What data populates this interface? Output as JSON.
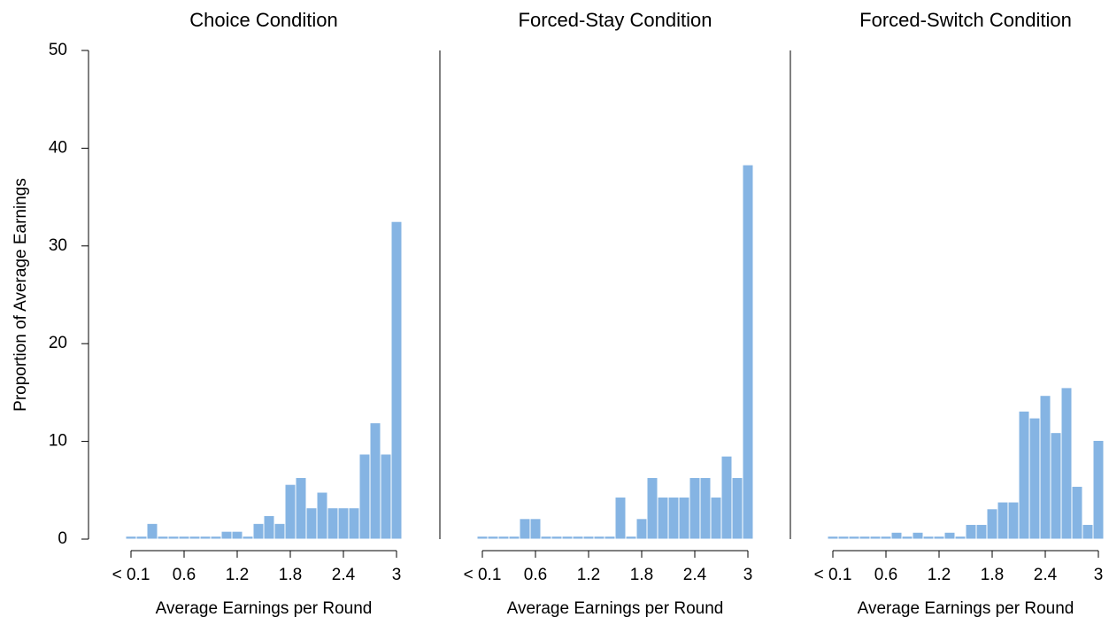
{
  "chart_data": [
    {
      "type": "histogram",
      "title": "Choice Condition",
      "xlabel": "Average Earnings per Round",
      "ylabel": "Proportion of Average Earnings",
      "bins": [
        -0.06,
        0.06,
        0.18,
        0.3,
        0.42,
        0.54,
        0.66,
        0.78,
        0.9,
        1.02,
        1.14,
        1.26,
        1.38,
        1.5,
        1.62,
        1.74,
        1.86,
        1.98,
        2.1,
        2.22,
        2.34,
        2.46,
        2.58,
        2.7,
        2.82,
        2.94,
        3.06
      ],
      "values": [
        0.3,
        0.3,
        1.6,
        0.3,
        0.3,
        0.3,
        0.3,
        0.3,
        0.3,
        0.8,
        0.8,
        0.3,
        1.6,
        2.4,
        1.6,
        5.6,
        6.3,
        3.2,
        4.8,
        3.2,
        3.2,
        3.2,
        8.7,
        11.9,
        8.7,
        32.5
      ],
      "color": "#85b4e3",
      "xlim": [
        -0.06,
        3.06
      ],
      "ylim": [
        0,
        50
      ],
      "xticks": [
        {
          "value": 0,
          "label": "< 0.1"
        },
        0.6,
        1.2,
        1.8,
        2.4,
        3
      ],
      "yticks": [
        0,
        10,
        20,
        30,
        40,
        50
      ]
    },
    {
      "type": "histogram",
      "title": "Forced-Stay Condition",
      "xlabel": "Average Earnings per Round",
      "bins": [
        -0.06,
        0.06,
        0.18,
        0.3,
        0.42,
        0.54,
        0.66,
        0.78,
        0.9,
        1.02,
        1.14,
        1.26,
        1.38,
        1.5,
        1.62,
        1.74,
        1.86,
        1.98,
        2.1,
        2.22,
        2.34,
        2.46,
        2.58,
        2.7,
        2.82,
        2.94,
        3.06
      ],
      "values": [
        0.3,
        0.3,
        0.3,
        0.3,
        2.1,
        2.1,
        0.3,
        0.3,
        0.3,
        0.3,
        0.3,
        0.3,
        0.3,
        4.3,
        0.3,
        2.1,
        6.3,
        4.3,
        4.3,
        4.3,
        6.3,
        6.3,
        4.3,
        8.5,
        6.3,
        38.3
      ],
      "color": "#85b4e3",
      "xlim": [
        -0.06,
        3.06
      ],
      "ylim": [
        0,
        50
      ],
      "xticks": [
        {
          "value": 0,
          "label": "< 0.1"
        },
        0.6,
        1.2,
        1.8,
        2.4,
        3
      ]
    },
    {
      "type": "histogram",
      "title": "Forced-Switch Condition",
      "xlabel": "Average Earnings per Round",
      "bins": [
        -0.06,
        0.06,
        0.18,
        0.3,
        0.42,
        0.54,
        0.66,
        0.78,
        0.9,
        1.02,
        1.14,
        1.26,
        1.38,
        1.5,
        1.62,
        1.74,
        1.86,
        1.98,
        2.1,
        2.22,
        2.34,
        2.46,
        2.58,
        2.7,
        2.82,
        2.94,
        3.06
      ],
      "values": [
        0.3,
        0.3,
        0.3,
        0.3,
        0.3,
        0.3,
        0.7,
        0.3,
        0.7,
        0.3,
        0.3,
        0.7,
        0.3,
        1.5,
        1.5,
        3.1,
        3.8,
        3.8,
        13.1,
        12.4,
        14.7,
        10.9,
        15.5,
        5.4,
        1.5,
        10.1
      ],
      "color": "#85b4e3",
      "xlim": [
        -0.06,
        3.06
      ],
      "ylim": [
        0,
        50
      ],
      "xticks": [
        {
          "value": 0,
          "label": "< 0.1"
        },
        0.6,
        1.2,
        1.8,
        2.4,
        3
      ]
    }
  ]
}
